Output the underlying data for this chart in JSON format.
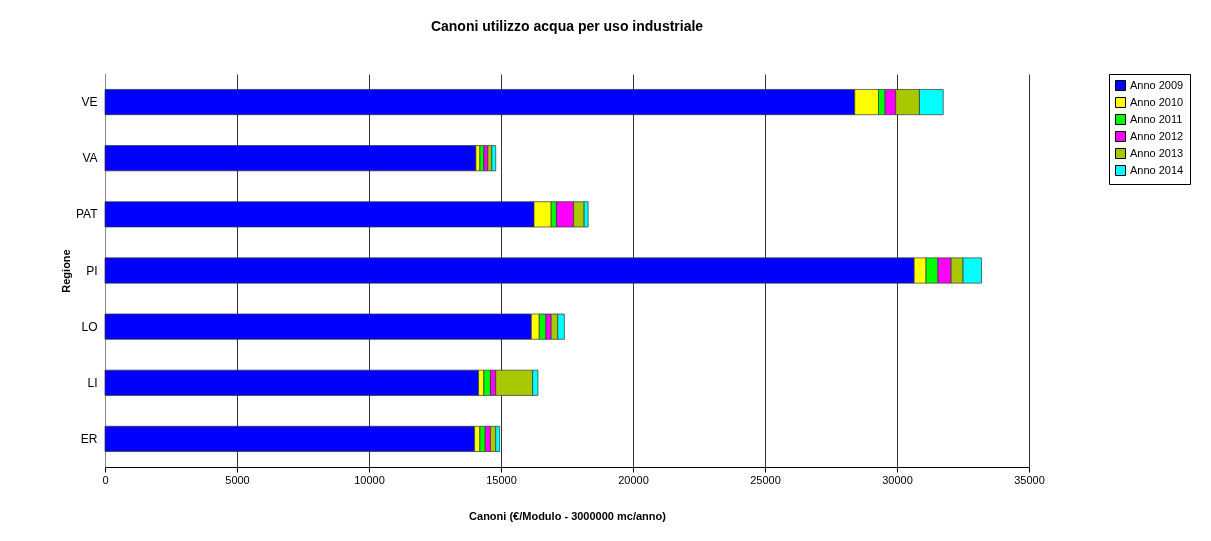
{
  "chart_data": {
    "type": "bar",
    "orientation": "horizontal",
    "stacked": true,
    "title": "Canoni utilizzo acqua per uso industriale",
    "xlabel": "Canoni (€/Modulo - 3000000  mc/anno)",
    "ylabel": "Regione",
    "categories": [
      "VE",
      "VA",
      "PAT",
      "PI",
      "LO",
      "LI",
      "ER"
    ],
    "series": [
      {
        "name": "Anno 2009",
        "color": "#0000ff",
        "values": [
          28400,
          14050,
          16250,
          30650,
          16150,
          14150,
          14000
        ]
      },
      {
        "name": "Anno 2010",
        "color": "#ffff00",
        "values": [
          900,
          150,
          650,
          450,
          300,
          200,
          200
        ]
      },
      {
        "name": "Anno 2011",
        "color": "#00ff00",
        "values": [
          250,
          150,
          200,
          450,
          250,
          250,
          200
        ]
      },
      {
        "name": "Anno 2012",
        "color": "#ff00ff",
        "values": [
          400,
          150,
          650,
          500,
          200,
          200,
          200
        ]
      },
      {
        "name": "Anno 2013",
        "color": "#a8c800",
        "values": [
          900,
          150,
          400,
          450,
          250,
          1400,
          200
        ]
      },
      {
        "name": "Anno 2014",
        "color": "#00ffff",
        "values": [
          900,
          150,
          150,
          700,
          250,
          200,
          150
        ]
      }
    ],
    "xlim": [
      0,
      35000
    ],
    "xticks": [
      0,
      5000,
      10000,
      15000,
      20000,
      25000,
      30000,
      35000
    ],
    "grid": "x",
    "legend": "right"
  }
}
